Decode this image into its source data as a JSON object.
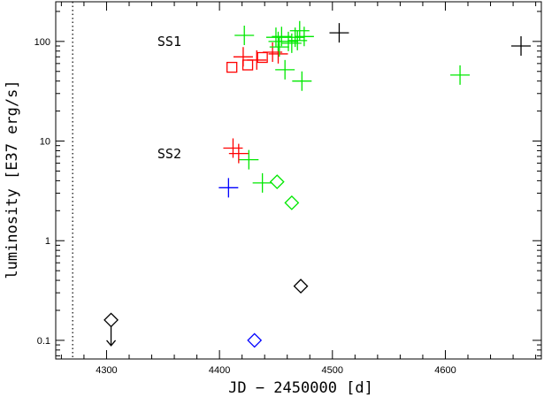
{
  "chart_data": {
    "type": "scatter",
    "xlabel": "JD − 2450000 [d]",
    "ylabel": "luminosity [E37 erg/s]",
    "xlim": [
      4255,
      4685
    ],
    "ylim": [
      0.065,
      250
    ],
    "yscale": "log",
    "xticks": [
      4300,
      4400,
      4500,
      4600
    ],
    "yticks": [
      {
        "value": 0.1,
        "label": "0.1"
      },
      {
        "value": 1,
        "label": "1"
      },
      {
        "value": 10,
        "label": "10"
      },
      {
        "value": 100,
        "label": "100"
      }
    ],
    "vline_dotted": 4270,
    "annotations": [
      {
        "text": "SS1",
        "x": 4345,
        "y": 90
      },
      {
        "text": "SS2",
        "x": 4345,
        "y": 6.7
      }
    ],
    "colors": {
      "red": "#ff0000",
      "green": "#00e800",
      "black": "#000000",
      "blue": "#0000ff"
    },
    "series": [
      {
        "color": "red",
        "marker": "plus",
        "points": [
          [
            4412,
            8.5
          ],
          [
            4417,
            7.5
          ],
          [
            4421,
            70
          ],
          [
            4433,
            65
          ],
          [
            4447,
            78
          ],
          [
            4452,
            75
          ]
        ]
      },
      {
        "color": "red",
        "marker": "square",
        "points": [
          [
            4411,
            55
          ],
          [
            4425,
            58
          ],
          [
            4438,
            69
          ]
        ]
      },
      {
        "color": "green",
        "marker": "plus",
        "points": [
          [
            4422,
            115
          ],
          [
            4426,
            6.5
          ],
          [
            4438,
            3.8
          ],
          [
            4450,
            110
          ],
          [
            4452,
            100
          ],
          [
            4453,
            88
          ],
          [
            4455,
            112
          ],
          [
            4458,
            52
          ],
          [
            4461,
            100
          ],
          [
            4464,
            96
          ],
          [
            4467,
            110
          ],
          [
            4469,
            102
          ],
          [
            4471,
            128
          ],
          [
            4473,
            40
          ],
          [
            4475,
            112
          ],
          [
            4613,
            46
          ]
        ]
      },
      {
        "color": "green",
        "marker": "diamond",
        "points": [
          [
            4451,
            3.9
          ],
          [
            4464,
            2.4
          ]
        ]
      },
      {
        "color": "black",
        "marker": "plus",
        "points": [
          [
            4506,
            122
          ],
          [
            4667,
            90
          ]
        ]
      },
      {
        "color": "black",
        "marker": "diamond",
        "points": [
          [
            4472,
            0.35
          ]
        ]
      },
      {
        "color": "black",
        "marker": "diamond-limit",
        "points": [
          [
            4304,
            0.16
          ]
        ]
      },
      {
        "color": "blue",
        "marker": "plus",
        "points": [
          [
            4408,
            3.4
          ]
        ]
      },
      {
        "color": "blue",
        "marker": "diamond",
        "points": [
          [
            4431,
            0.1
          ]
        ]
      }
    ]
  }
}
